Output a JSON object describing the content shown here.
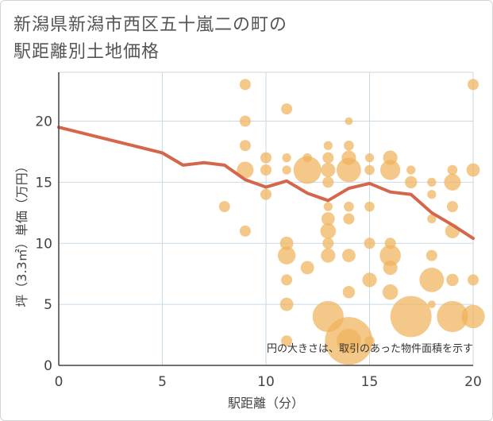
{
  "title_lines": [
    "新潟県新潟市西区五十嵐二の町の",
    "駅距離別土地価格"
  ],
  "note": "円の大きさは、取引のあった物件面積を示す",
  "colors": {
    "bubble": "#f0b35a",
    "line": "#d4664c",
    "grid": "#c9d9e6",
    "axis": "#444444"
  },
  "chart_data": {
    "type": "scatter",
    "xlabel": "駅距離（分）",
    "ylabel": "坪（3.3㎡）単価（万円）",
    "xlim": [
      0,
      20
    ],
    "ylim": [
      0,
      24
    ],
    "xticks": [
      0,
      5,
      10,
      15,
      20
    ],
    "yticks": [
      0,
      5,
      10,
      15,
      20
    ],
    "grid": true,
    "bubbles": [
      {
        "x": 9,
        "y": 23,
        "s": 1
      },
      {
        "x": 9,
        "y": 20,
        "s": 1
      },
      {
        "x": 9,
        "y": 18,
        "s": 1
      },
      {
        "x": 9,
        "y": 16,
        "s": 1.5
      },
      {
        "x": 9,
        "y": 11,
        "s": 1
      },
      {
        "x": 8,
        "y": 13,
        "s": 1
      },
      {
        "x": 10,
        "y": 17,
        "s": 1
      },
      {
        "x": 10,
        "y": 16,
        "s": 1
      },
      {
        "x": 10,
        "y": 14,
        "s": 1
      },
      {
        "x": 11,
        "y": 21,
        "s": 1
      },
      {
        "x": 11,
        "y": 17,
        "s": 0.8
      },
      {
        "x": 11,
        "y": 16,
        "s": 0.8
      },
      {
        "x": 11,
        "y": 10,
        "s": 1.2
      },
      {
        "x": 11,
        "y": 9,
        "s": 1.6
      },
      {
        "x": 11,
        "y": 7,
        "s": 1
      },
      {
        "x": 11,
        "y": 5,
        "s": 1.2
      },
      {
        "x": 11,
        "y": 2,
        "s": 1
      },
      {
        "x": 12,
        "y": 16,
        "s": 2.5
      },
      {
        "x": 12,
        "y": 17,
        "s": 0.8
      },
      {
        "x": 12,
        "y": 8,
        "s": 1.2
      },
      {
        "x": 13,
        "y": 18,
        "s": 0.8
      },
      {
        "x": 13,
        "y": 17,
        "s": 1
      },
      {
        "x": 13,
        "y": 16,
        "s": 1.3
      },
      {
        "x": 13,
        "y": 15,
        "s": 1
      },
      {
        "x": 13,
        "y": 13,
        "s": 0.8
      },
      {
        "x": 13,
        "y": 12,
        "s": 1.2
      },
      {
        "x": 13,
        "y": 11,
        "s": 1.4
      },
      {
        "x": 13,
        "y": 10,
        "s": 1
      },
      {
        "x": 13,
        "y": 9,
        "s": 1.3
      },
      {
        "x": 13,
        "y": 4,
        "s": 2.8
      },
      {
        "x": 14,
        "y": 20,
        "s": 0.7
      },
      {
        "x": 14,
        "y": 18,
        "s": 0.9
      },
      {
        "x": 14,
        "y": 17,
        "s": 1.3
      },
      {
        "x": 14,
        "y": 16,
        "s": 2.2
      },
      {
        "x": 14,
        "y": 13,
        "s": 0.9
      },
      {
        "x": 14,
        "y": 12,
        "s": 1
      },
      {
        "x": 14,
        "y": 9,
        "s": 1.2
      },
      {
        "x": 14,
        "y": 6,
        "s": 1.1
      },
      {
        "x": 14,
        "y": 2,
        "s": 4.3
      },
      {
        "x": 14,
        "y": 2,
        "s": 2.2
      },
      {
        "x": 15,
        "y": 17,
        "s": 0.8
      },
      {
        "x": 15,
        "y": 16,
        "s": 0.9
      },
      {
        "x": 15,
        "y": 13,
        "s": 0.9
      },
      {
        "x": 15,
        "y": 10,
        "s": 1
      },
      {
        "x": 15,
        "y": 7,
        "s": 1.3
      },
      {
        "x": 15,
        "y": 2,
        "s": 0.9
      },
      {
        "x": 16,
        "y": 17,
        "s": 1.3
      },
      {
        "x": 16,
        "y": 16,
        "s": 1.8
      },
      {
        "x": 16,
        "y": 10,
        "s": 1
      },
      {
        "x": 16,
        "y": 9,
        "s": 1.9
      },
      {
        "x": 16,
        "y": 8,
        "s": 1.3
      },
      {
        "x": 16,
        "y": 6,
        "s": 1.4
      },
      {
        "x": 17,
        "y": 16,
        "s": 0.8
      },
      {
        "x": 17,
        "y": 15,
        "s": 1.1
      },
      {
        "x": 17,
        "y": 4,
        "s": 3.7
      },
      {
        "x": 18,
        "y": 15,
        "s": 0.8
      },
      {
        "x": 18,
        "y": 14,
        "s": 0.8
      },
      {
        "x": 18,
        "y": 12,
        "s": 0.8
      },
      {
        "x": 18,
        "y": 9,
        "s": 1
      },
      {
        "x": 18,
        "y": 7,
        "s": 2.2
      },
      {
        "x": 18,
        "y": 5,
        "s": 0.7
      },
      {
        "x": 19,
        "y": 16,
        "s": 0.9
      },
      {
        "x": 19,
        "y": 15,
        "s": 1.5
      },
      {
        "x": 19,
        "y": 13,
        "s": 1
      },
      {
        "x": 19,
        "y": 11,
        "s": 1.3
      },
      {
        "x": 19,
        "y": 7,
        "s": 1.1
      },
      {
        "x": 19,
        "y": 4,
        "s": 2.8
      },
      {
        "x": 20,
        "y": 23,
        "s": 1
      },
      {
        "x": 20,
        "y": 16,
        "s": 1.2
      },
      {
        "x": 20,
        "y": 7,
        "s": 1
      },
      {
        "x": 20,
        "y": 4,
        "s": 2.1
      }
    ],
    "line": {
      "x": [
        0,
        5,
        6,
        7,
        8,
        9,
        10,
        11,
        12,
        13,
        14,
        15,
        16,
        17,
        18,
        19,
        20
      ],
      "y": [
        19.5,
        17.4,
        16.4,
        16.6,
        16.4,
        15.2,
        14.6,
        15.1,
        14.1,
        13.5,
        14.5,
        14.9,
        14.2,
        14.0,
        12.5,
        11.5,
        10.4
      ]
    }
  }
}
